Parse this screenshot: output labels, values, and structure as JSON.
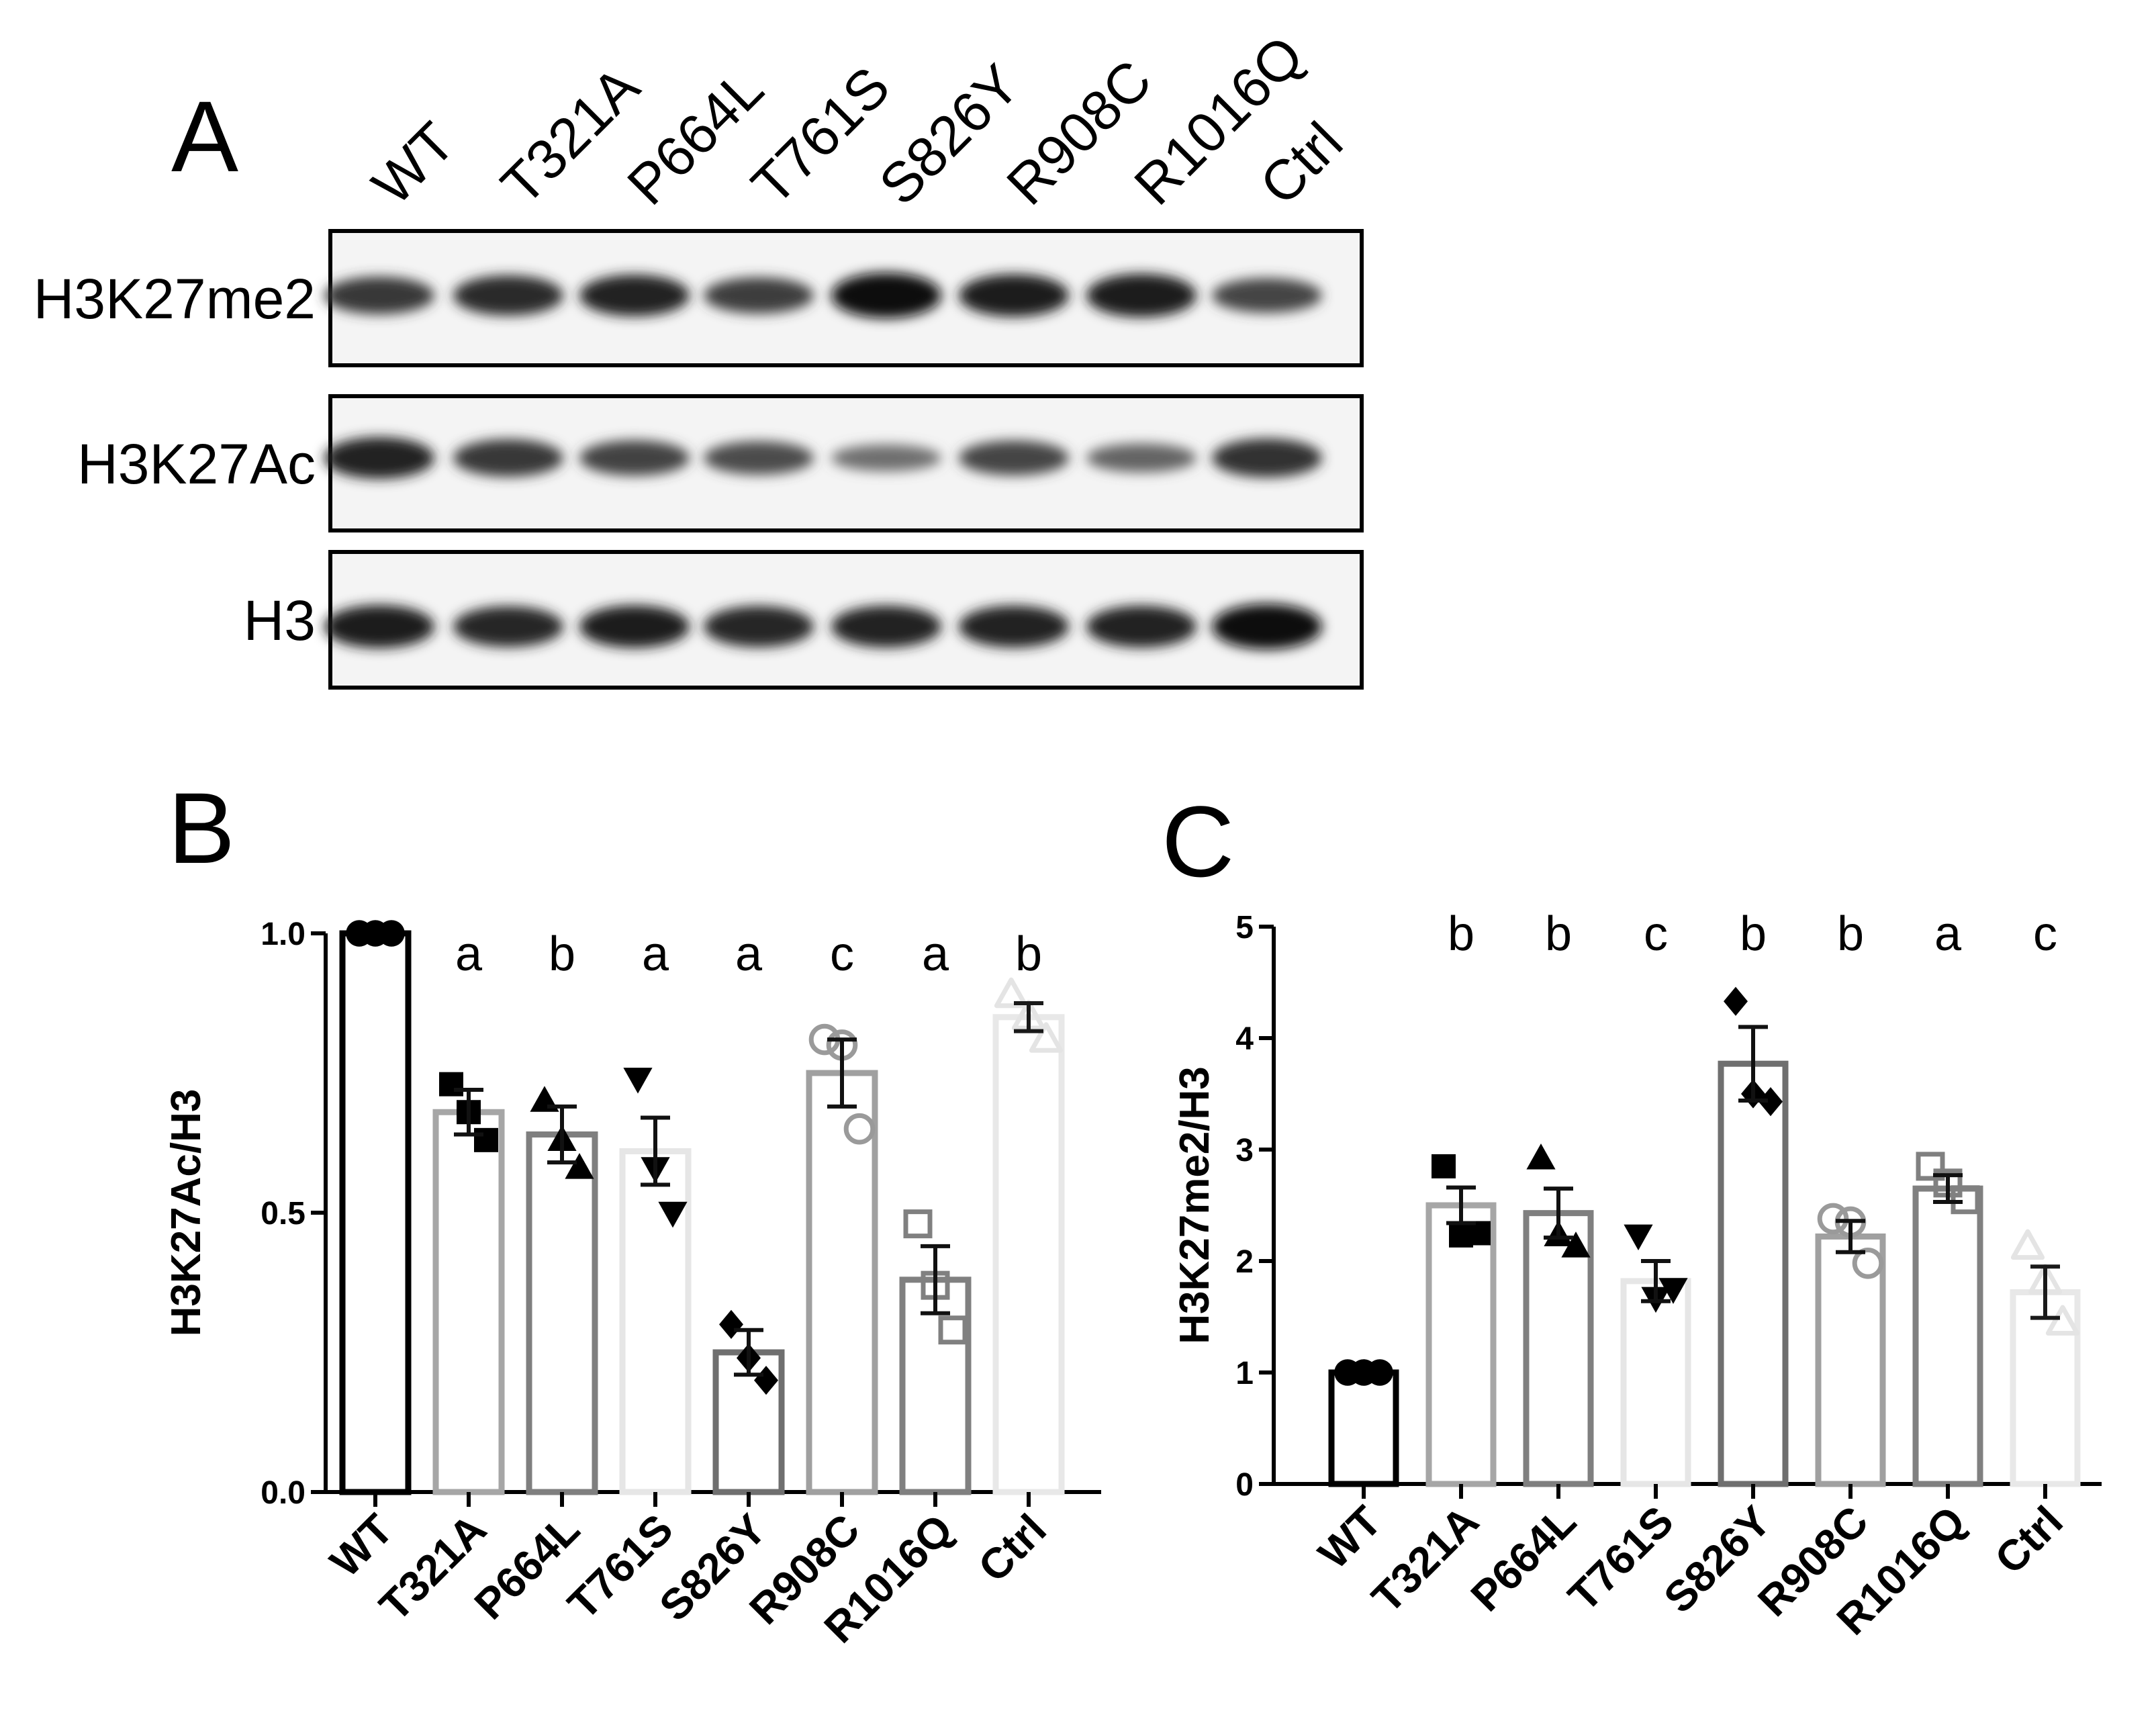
{
  "panels": {
    "a": "A",
    "b": "B",
    "c": "C"
  },
  "blot": {
    "lanes": [
      "WT",
      "T321A",
      "P664L",
      "T761S",
      "S826Y",
      "R908C",
      "R1016Q",
      "Ctrl"
    ],
    "rows": [
      {
        "label": "H3K27me2",
        "intensities": [
          0.7,
          0.8,
          0.85,
          0.65,
          1.0,
          0.88,
          0.92,
          0.6
        ]
      },
      {
        "label": "H3K27Ac",
        "intensities": [
          0.85,
          0.7,
          0.62,
          0.55,
          0.3,
          0.6,
          0.38,
          0.75
        ]
      },
      {
        "label": "H3",
        "intensities": [
          0.9,
          0.82,
          0.88,
          0.84,
          0.86,
          0.86,
          0.86,
          1.0
        ]
      }
    ]
  },
  "chart_data": [
    {
      "type": "bar",
      "panel": "B",
      "categories": [
        "WT",
        "T321A",
        "P664L",
        "T761S",
        "S826Y",
        "R908C",
        "R1016Q",
        "Ctrl"
      ],
      "values": [
        1.0,
        0.68,
        0.64,
        0.61,
        0.25,
        0.75,
        0.38,
        0.85
      ],
      "errors": [
        0.0,
        0.04,
        0.05,
        0.06,
        0.04,
        0.06,
        0.06,
        0.025
      ],
      "points": [
        [
          1.0,
          1.0,
          1.0
        ],
        [
          0.73,
          0.68,
          0.63
        ],
        [
          0.7,
          0.63,
          0.58
        ],
        [
          0.74,
          0.58,
          0.5
        ],
        [
          0.3,
          0.24,
          0.2
        ],
        [
          0.81,
          0.8,
          0.65
        ],
        [
          0.48,
          0.37,
          0.29
        ],
        [
          0.89,
          0.85,
          0.81
        ]
      ],
      "markers": [
        "circle",
        "square",
        "triangle",
        "triangle-down",
        "diamond",
        "circle-open",
        "square-open",
        "triangle-open"
      ],
      "colors": [
        "#000000",
        "#a6a6a6",
        "#7f7f7f",
        "#e6e6e6",
        "#6f6f6f",
        "#a0a0a0",
        "#808080",
        "#e8e8e8"
      ],
      "marker_colors": [
        "#000000",
        "#000000",
        "#000000",
        "#000000",
        "#000000",
        "#9a9a9a",
        "#808080",
        "#e4e4e4"
      ],
      "significance": [
        "",
        "a",
        "b",
        "a",
        "a",
        "c",
        "a",
        "b"
      ],
      "ylabel": "H3K27Ac/H3",
      "ylim": [
        0,
        1.0
      ],
      "yticks": [
        "0.0",
        "0.5",
        "1.0"
      ]
    },
    {
      "type": "bar",
      "panel": "C",
      "categories": [
        "WT",
        "T321A",
        "P664L",
        "T761S",
        "S826Y",
        "R908C",
        "R1016Q",
        "Ctrl"
      ],
      "values": [
        1.0,
        2.5,
        2.43,
        1.82,
        3.77,
        2.22,
        2.65,
        1.72
      ],
      "errors": [
        0.0,
        0.16,
        0.22,
        0.18,
        0.33,
        0.14,
        0.12,
        0.23
      ],
      "points": [
        [
          1.0,
          1.0,
          1.0
        ],
        [
          2.85,
          2.23,
          2.25
        ],
        [
          2.92,
          2.23,
          2.13
        ],
        [
          2.23,
          1.67,
          1.75
        ],
        [
          4.33,
          3.5,
          3.43
        ],
        [
          2.38,
          2.35,
          1.98
        ],
        [
          2.85,
          2.7,
          2.55
        ],
        [
          2.13,
          1.82,
          1.45
        ]
      ],
      "markers": [
        "circle",
        "square",
        "triangle",
        "triangle-down",
        "diamond",
        "circle-open",
        "square-open",
        "triangle-open"
      ],
      "colors": [
        "#000000",
        "#a6a6a6",
        "#7f7f7f",
        "#e6e6e6",
        "#6f6f6f",
        "#a0a0a0",
        "#808080",
        "#e8e8e8"
      ],
      "marker_colors": [
        "#000000",
        "#000000",
        "#000000",
        "#000000",
        "#000000",
        "#9a9a9a",
        "#808080",
        "#e4e4e4"
      ],
      "significance": [
        "",
        "b",
        "b",
        "c",
        "b",
        "b",
        "a",
        "c"
      ],
      "ylabel": "H3K27me2/H3",
      "ylim": [
        0,
        5
      ],
      "yticks": [
        "0",
        "1",
        "2",
        "3",
        "4",
        "5"
      ]
    }
  ]
}
